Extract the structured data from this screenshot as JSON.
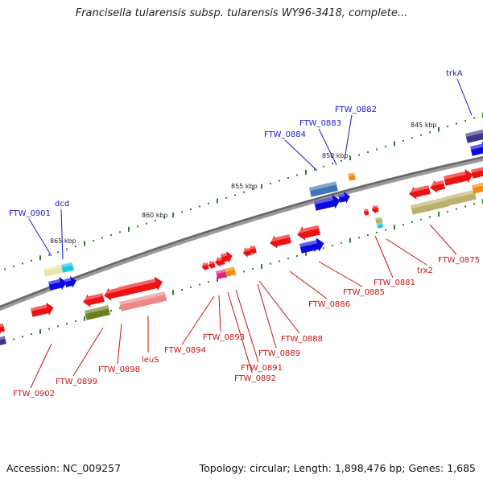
{
  "title": "Francisella tularensis subsp. tularensis WY96-3418, complete...",
  "footer": {
    "accession": "Accession: NC_009257",
    "summary": "Topology: circular; Length: 1,898,476 bp; Genes: 1,685"
  },
  "scale_labels": [
    "845 kbp",
    "850 kbp",
    "855 kbp",
    "860 kbp",
    "865 kbp"
  ],
  "gene_labels_top": [
    "trkA",
    "FTW_0882",
    "FTW_0883",
    "FTW_0884",
    "dcd",
    "FTW_0901"
  ],
  "gene_labels_bottom": [
    "FTW_0875",
    "trx2",
    "FTW_0881",
    "FTW_0885",
    "FTW_0886",
    "FTW_0888",
    "FTW_0889",
    "FTW_0891",
    "FTW_0892",
    "FTW_0893",
    "FTW_0894",
    "leuS",
    "FTW_0898",
    "FTW_0899",
    "FTW_0902"
  ],
  "colors": {
    "backbone": "#7a7a7a",
    "label_top": "#1a1acc",
    "label_bottom": "#cc1111",
    "tick": "#2e7d32",
    "red": "#ee1111",
    "blue": "#0a0ae0",
    "steelblue": "#3f74b5",
    "khaki": "#b9b06a",
    "olive": "#6b7f1e",
    "pink": "#ee8888",
    "orange": "#f08a10",
    "magenta": "#e0208c",
    "cyan": "#18c8e8",
    "navy": "#3d3688",
    "paleyellow": "#ece4a4"
  }
}
